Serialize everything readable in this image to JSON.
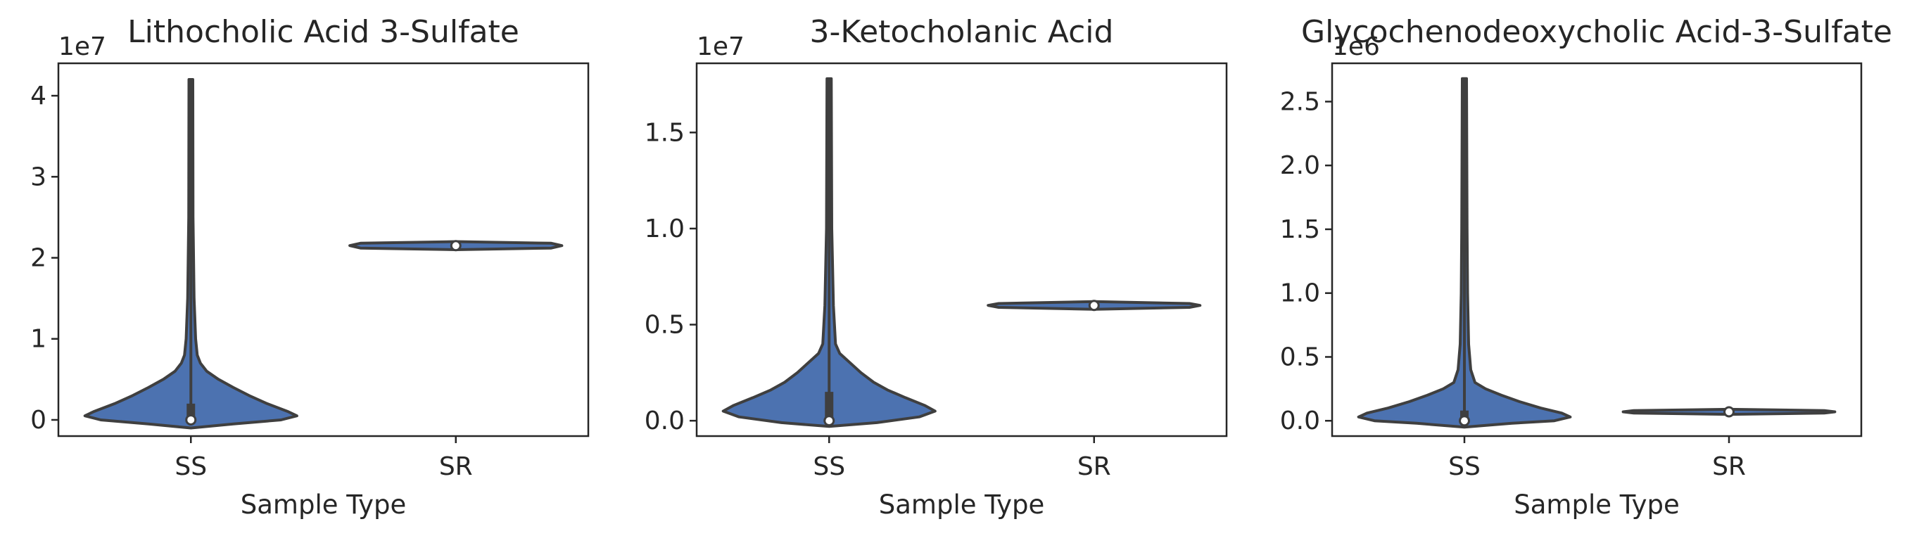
{
  "chart_data": [
    {
      "type": "violin",
      "title": "Lithocholic Acid 3-Sulfate",
      "xlabel": "Sample Type",
      "ylabel": "",
      "categories": [
        "SS",
        "SR"
      ],
      "y_offset_label": "1e7",
      "ylim": [
        -0.2,
        4.4
      ],
      "yticks": [
        0,
        1,
        2,
        3,
        4
      ],
      "ytick_labels": [
        "0",
        "1",
        "2",
        "3",
        "4"
      ],
      "violins": [
        {
          "category": "SS",
          "min": -0.05,
          "max": 4.2,
          "q1": 0.0,
          "q3": 0.2,
          "median": 0.0,
          "profile": [
            [
              -0.1,
              0.0
            ],
            [
              -0.05,
              0.4
            ],
            [
              0.0,
              0.85
            ],
            [
              0.05,
              1.0
            ],
            [
              0.1,
              0.92
            ],
            [
              0.2,
              0.72
            ],
            [
              0.3,
              0.55
            ],
            [
              0.4,
              0.4
            ],
            [
              0.5,
              0.26
            ],
            [
              0.6,
              0.15
            ],
            [
              0.7,
              0.09
            ],
            [
              0.8,
              0.06
            ],
            [
              1.0,
              0.045
            ],
            [
              1.5,
              0.03
            ],
            [
              2.5,
              0.02
            ],
            [
              4.2,
              0.018
            ]
          ]
        },
        {
          "category": "SR",
          "min": 2.1,
          "max": 2.2,
          "q1": 2.13,
          "q3": 2.17,
          "median": 2.15,
          "profile": [
            [
              2.1,
              0.0
            ],
            [
              2.12,
              0.9
            ],
            [
              2.15,
              1.0
            ],
            [
              2.18,
              0.9
            ],
            [
              2.2,
              0.0
            ]
          ]
        }
      ]
    },
    {
      "type": "violin",
      "title": "3-Ketocholanic Acid",
      "xlabel": "Sample Type",
      "ylabel": "",
      "categories": [
        "SS",
        "SR"
      ],
      "y_offset_label": "1e7",
      "ylim": [
        -0.08,
        1.86
      ],
      "yticks": [
        0.0,
        0.5,
        1.0,
        1.5
      ],
      "ytick_labels": [
        "0.0",
        "0.5",
        "1.0",
        "1.5"
      ],
      "violins": [
        {
          "category": "SS",
          "min": -0.02,
          "max": 1.78,
          "q1": 0.0,
          "q3": 0.15,
          "median": 0.0,
          "profile": [
            [
              -0.03,
              0.0
            ],
            [
              -0.01,
              0.45
            ],
            [
              0.02,
              0.85
            ],
            [
              0.05,
              1.0
            ],
            [
              0.08,
              0.9
            ],
            [
              0.12,
              0.72
            ],
            [
              0.16,
              0.55
            ],
            [
              0.2,
              0.42
            ],
            [
              0.25,
              0.3
            ],
            [
              0.3,
              0.2
            ],
            [
              0.35,
              0.1
            ],
            [
              0.4,
              0.06
            ],
            [
              0.6,
              0.04
            ],
            [
              1.0,
              0.025
            ],
            [
              1.78,
              0.02
            ]
          ]
        },
        {
          "category": "SR",
          "min": 0.58,
          "max": 0.62,
          "q1": 0.59,
          "q3": 0.61,
          "median": 0.6,
          "profile": [
            [
              0.58,
              0.0
            ],
            [
              0.59,
              0.9
            ],
            [
              0.6,
              1.0
            ],
            [
              0.61,
              0.9
            ],
            [
              0.62,
              0.0
            ]
          ]
        }
      ]
    },
    {
      "type": "violin",
      "title": "Glycochenodeoxycholic Acid-3-Sulfate",
      "xlabel": "Sample Type",
      "ylabel": "",
      "categories": [
        "SS",
        "SR"
      ],
      "y_offset_label": "1e6",
      "ylim": [
        -0.12,
        2.8
      ],
      "yticks": [
        0.0,
        0.5,
        1.0,
        1.5,
        2.0,
        2.5
      ],
      "ytick_labels": [
        "0.0",
        "0.5",
        "1.0",
        "1.5",
        "2.0",
        "2.5"
      ],
      "violins": [
        {
          "category": "SS",
          "min": -0.03,
          "max": 2.68,
          "q1": 0.0,
          "q3": 0.08,
          "median": 0.0,
          "profile": [
            [
              -0.05,
              0.0
            ],
            [
              -0.02,
              0.45
            ],
            [
              0.0,
              0.85
            ],
            [
              0.03,
              1.0
            ],
            [
              0.06,
              0.92
            ],
            [
              0.1,
              0.72
            ],
            [
              0.15,
              0.52
            ],
            [
              0.2,
              0.35
            ],
            [
              0.25,
              0.2
            ],
            [
              0.3,
              0.1
            ],
            [
              0.4,
              0.06
            ],
            [
              0.6,
              0.04
            ],
            [
              1.0,
              0.03
            ],
            [
              1.5,
              0.025
            ],
            [
              2.68,
              0.02
            ]
          ]
        },
        {
          "category": "SR",
          "min": 0.05,
          "max": 0.09,
          "q1": 0.06,
          "q3": 0.08,
          "median": 0.07,
          "profile": [
            [
              0.05,
              0.0
            ],
            [
              0.06,
              0.9
            ],
            [
              0.07,
              1.0
            ],
            [
              0.08,
              0.9
            ],
            [
              0.09,
              0.0
            ]
          ]
        }
      ]
    }
  ],
  "colors": {
    "violin_fill": "#4c72b0",
    "violin_edge": "#3f3f3f",
    "median_fill": "#ffffff",
    "axes": "#262626"
  }
}
